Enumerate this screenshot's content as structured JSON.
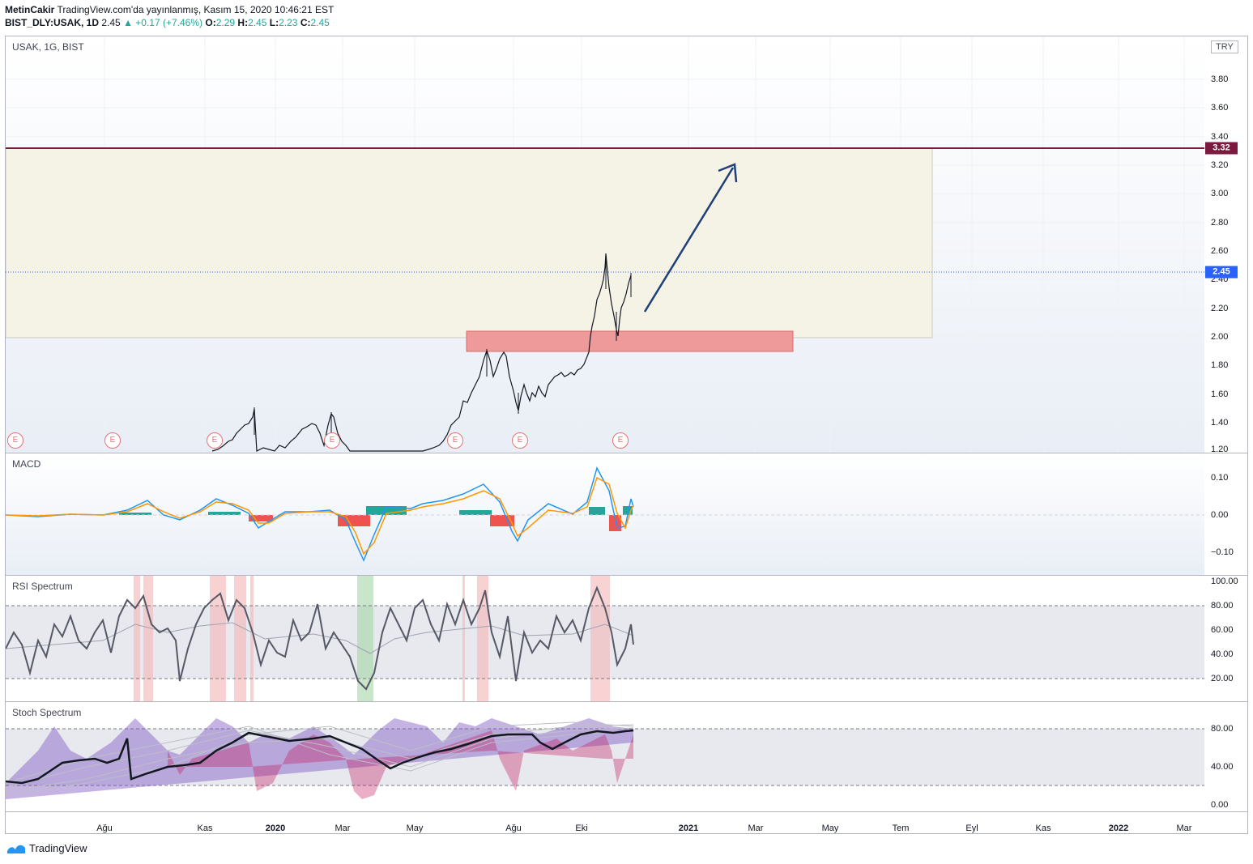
{
  "header": {
    "author": "MetinCakir",
    "published": "TradingView.com'da yayınlanmış, Kasım 15, 2020 10:46:21 EST",
    "symbol": "BIST_DLY:USAK, 1D",
    "last": "2.45",
    "change": "▲ +0.17 (+7.46%)",
    "o_label": "O:",
    "o": "2.29",
    "h_label": "H:",
    "h": "2.45",
    "l_label": "L:",
    "l": "2.23",
    "c_label": "C:",
    "c": "2.45"
  },
  "panes": {
    "main_title": "USAK, 1G, BIST",
    "macd_title": "MACD",
    "rsi_title": "RSI Spectrum",
    "stoch_title": "Stoch Spectrum"
  },
  "currency": "TRY",
  "price_tags": {
    "resistance": "3.32",
    "last": "2.45"
  },
  "earnings_badge": "E",
  "axes": {
    "price_ticks": [
      "3.80",
      "3.60",
      "3.40",
      "3.20",
      "3.00",
      "2.80",
      "2.60",
      "2.40",
      "2.20",
      "2.00",
      "1.80",
      "1.60",
      "1.40",
      "1.20"
    ],
    "macd_ticks": [
      "0.10",
      "0.00",
      "−0.10"
    ],
    "rsi_ticks": [
      "100.00",
      "80.00",
      "60.00",
      "40.00",
      "20.00"
    ],
    "stoch_ticks": [
      "80.00",
      "40.00",
      "0.00"
    ],
    "time_labels": [
      "Ağu",
      "Kas",
      "2020",
      "Mar",
      "May",
      "Ağu",
      "Eki",
      "2021",
      "Mar",
      "May",
      "Tem",
      "Eyl",
      "Kas",
      "2022",
      "Mar"
    ]
  },
  "colors": {
    "up": "#26a69a",
    "resistance_line": "#7b1a3e",
    "last_price": "#2962ff",
    "zone_red": "#ef9a9a",
    "zone_beige": "#f5f3e6",
    "arrow": "#1e3f7a",
    "macd_line": "#2196f3",
    "signal_line": "#ff9800"
  },
  "brand": "TradingView"
}
